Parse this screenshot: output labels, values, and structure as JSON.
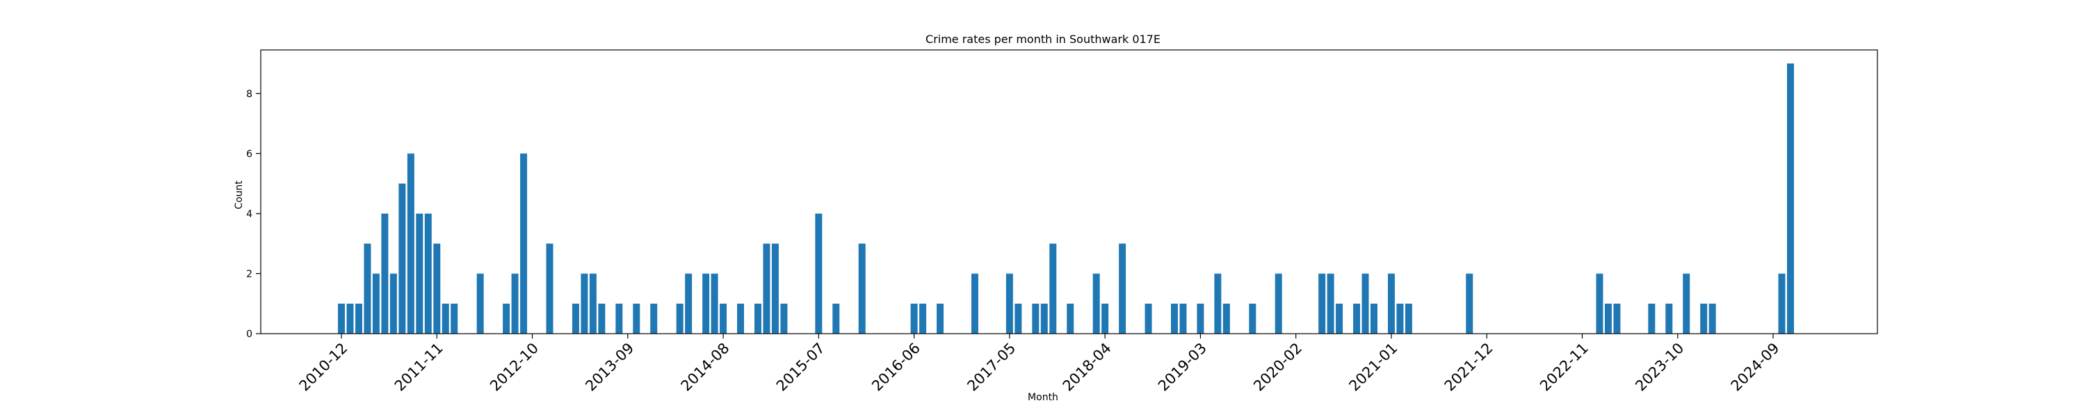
{
  "chart_data": {
    "type": "bar",
    "title": "Crime rates per month in Southwark 017E",
    "xlabel": "Month",
    "ylabel": "Count",
    "ylim": [
      0,
      9.45
    ],
    "yticks": [
      0,
      2,
      4,
      6,
      8
    ],
    "xticks": [
      "2010-12",
      "2011-11",
      "2012-10",
      "2013-09",
      "2014-08",
      "2015-07",
      "2016-06",
      "2017-05",
      "2018-04",
      "2019-03",
      "2020-02",
      "2021-01",
      "2021-12",
      "2022-11",
      "2023-10",
      "2024-09"
    ],
    "grid": false,
    "bar_color": "#1f77b4",
    "x": [
      "2010-12",
      "2011-01",
      "2011-02",
      "2011-03",
      "2011-04",
      "2011-05",
      "2011-06",
      "2011-07",
      "2011-08",
      "2011-09",
      "2011-10",
      "2011-11",
      "2011-12",
      "2012-01",
      "2012-04",
      "2012-07",
      "2012-08",
      "2012-09",
      "2012-12",
      "2013-03",
      "2013-04",
      "2013-05",
      "2013-06",
      "2013-08",
      "2013-10",
      "2013-12",
      "2014-03",
      "2014-04",
      "2014-06",
      "2014-07",
      "2014-08",
      "2014-10",
      "2014-12",
      "2015-01",
      "2015-02",
      "2015-03",
      "2015-07",
      "2015-09",
      "2015-12",
      "2016-06",
      "2016-07",
      "2016-09",
      "2017-01",
      "2017-05",
      "2017-06",
      "2017-08",
      "2017-09",
      "2017-10",
      "2017-12",
      "2018-03",
      "2018-04",
      "2018-06",
      "2018-09",
      "2018-12",
      "2019-01",
      "2019-03",
      "2019-05",
      "2019-06",
      "2019-09",
      "2019-12",
      "2020-05",
      "2020-06",
      "2020-07",
      "2020-09",
      "2020-10",
      "2020-11",
      "2021-01",
      "2021-02",
      "2021-03",
      "2021-10",
      "2023-01",
      "2023-02",
      "2023-03",
      "2023-07",
      "2023-09",
      "2023-11",
      "2024-01",
      "2024-02",
      "2024-10",
      "2024-11"
    ],
    "values": [
      1,
      1,
      1,
      3,
      2,
      4,
      2,
      5,
      6,
      4,
      4,
      3,
      1,
      1,
      2,
      1,
      2,
      6,
      3,
      1,
      2,
      2,
      1,
      1,
      1,
      1,
      1,
      2,
      2,
      2,
      1,
      1,
      1,
      3,
      3,
      1,
      4,
      1,
      3,
      1,
      1,
      1,
      2,
      2,
      1,
      1,
      1,
      3,
      1,
      2,
      1,
      3,
      1,
      1,
      1,
      1,
      2,
      1,
      1,
      2,
      2,
      2,
      1,
      1,
      2,
      1,
      2,
      1,
      1,
      2,
      2,
      1,
      1,
      1,
      1,
      2,
      1,
      1,
      2,
      9
    ]
  }
}
